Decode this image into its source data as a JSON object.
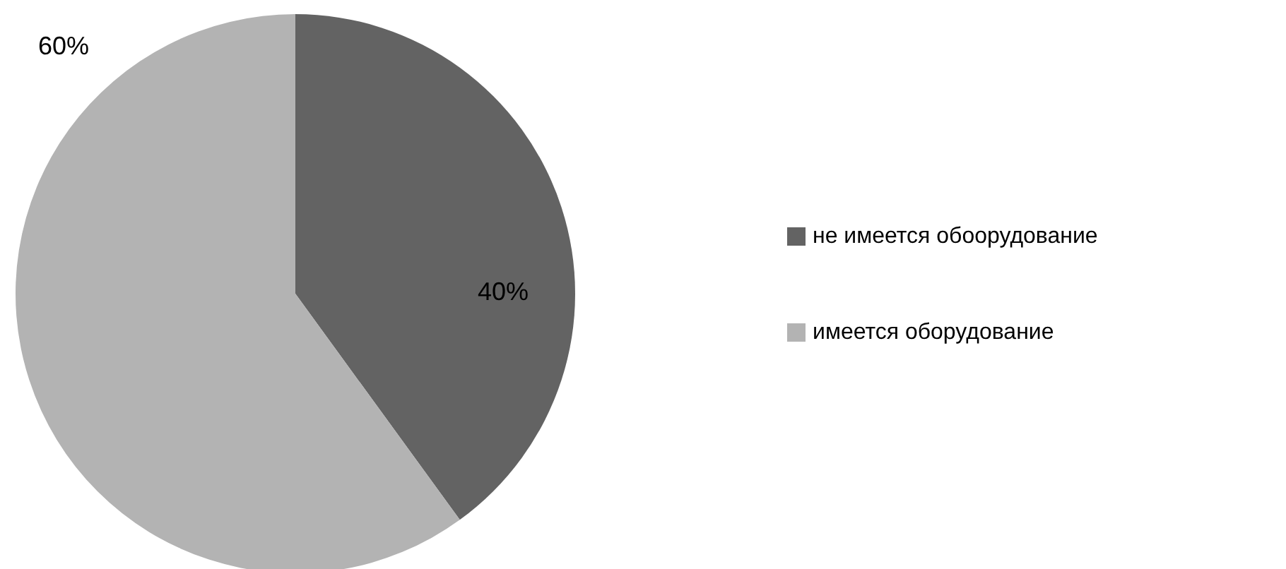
{
  "chart_data": {
    "type": "pie",
    "categories": [
      "не имеется обоорудование",
      "имеется оборудование"
    ],
    "values": [
      40,
      60
    ],
    "value_labels": [
      "40%",
      "60%"
    ],
    "colors": [
      "#636363",
      "#b3b3b3"
    ],
    "legend": "right"
  }
}
